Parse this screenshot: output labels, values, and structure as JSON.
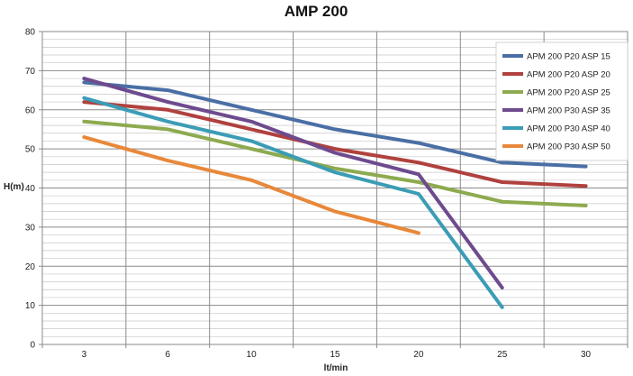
{
  "chart_data": {
    "type": "line",
    "title": "AMP 200",
    "xlabel": "lt/min",
    "ylabel": "H(m)",
    "categories": [
      "3",
      "6",
      "10",
      "15",
      "20",
      "25",
      "30"
    ],
    "ylim": [
      0,
      80
    ],
    "yticks": [
      "0",
      "10",
      "20",
      "30",
      "40",
      "50",
      "60",
      "70",
      "80"
    ],
    "grid": true,
    "legend_position": "top-right",
    "series": [
      {
        "name": "APM 200 P20 ASP 15",
        "color": "#4A6FA5",
        "values": [
          67,
          65,
          60,
          55,
          51.5,
          46.5,
          45.5
        ]
      },
      {
        "name": "APM 200 P20 ASP 20",
        "color": "#B0413E",
        "values": [
          62,
          60,
          55,
          50,
          46.5,
          41.5,
          40.5
        ]
      },
      {
        "name": "APM 200 P20 ASP 25",
        "color": "#8DAA4F",
        "values": [
          57,
          55,
          50,
          45,
          41.5,
          36.5,
          35.5
        ]
      },
      {
        "name": "APM 200 P30 ASP 35",
        "color": "#6E4A8E",
        "values": [
          68,
          62,
          57,
          49,
          43.5,
          14.5,
          null
        ]
      },
      {
        "name": "APM 200 P30 ASP 40",
        "color": "#3B9CB5",
        "values": [
          63,
          57,
          52,
          44,
          38.5,
          9.5,
          null
        ]
      },
      {
        "name": "APM 200 P30 ASP 50",
        "color": "#E8883A",
        "values": [
          53,
          47,
          42,
          34,
          28.5,
          null,
          null
        ]
      }
    ]
  }
}
